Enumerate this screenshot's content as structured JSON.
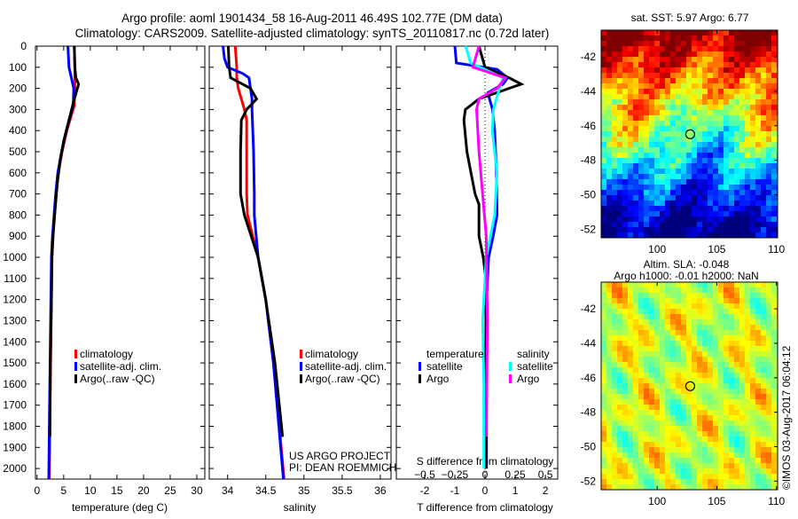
{
  "title_line1": "Argo profile: aoml 1901434_58 16-Aug-2011 46.49S 102.77E (DM data)",
  "title_line2": "Climatology: CARS2009. Satellite-adjusted climatology: synTS_20110817.nc (0.72d later)",
  "credit": "©IMOS 03-Aug-2017 06:04:12",
  "project_line1": "US ARGO PROJECT",
  "project_line2": "PI: DEAN ROEMMICH",
  "colors": {
    "climatology": "#ff0000",
    "satellite": "#0000ff",
    "argo": "#000000",
    "sal_satellite": "#00ffff",
    "sal_argo": "#ff00ff"
  },
  "chart_data": [
    {
      "type": "line",
      "name": "temperature-profile",
      "xlabel": "temperature (deg C)",
      "xlim": [
        -0.3,
        31.5
      ],
      "ylim": [
        0,
        2050
      ],
      "y_reversed": true,
      "xticks": [
        0,
        5,
        10,
        15,
        20,
        25,
        30
      ],
      "yticks": [
        0,
        100,
        200,
        300,
        400,
        500,
        600,
        700,
        800,
        900,
        1000,
        1100,
        1200,
        1300,
        1400,
        1500,
        1600,
        1700,
        1800,
        1900,
        2000
      ],
      "legend": [
        "climatology",
        "satellite-adj. clim.",
        "Argo(..raw -QC)"
      ],
      "series": [
        {
          "name": "climatology",
          "color": "#ff0000",
          "depth": [
            0,
            100,
            200,
            280,
            400,
            500,
            600,
            700,
            800,
            900,
            1000,
            1200,
            1400,
            1700,
            2050
          ],
          "values": [
            7.0,
            7.1,
            7.1,
            7.0,
            5.6,
            4.7,
            4.0,
            3.6,
            3.3,
            3.0,
            2.8,
            2.7,
            2.6,
            2.45,
            2.3
          ]
        },
        {
          "name": "satellite-adj. clim.",
          "color": "#0000ff",
          "depth": [
            0,
            100,
            200,
            280,
            400,
            500,
            600,
            700,
            800,
            900,
            1000,
            1200,
            1400,
            1700,
            2050
          ],
          "values": [
            5.8,
            6.0,
            6.9,
            6.8,
            5.5,
            4.6,
            3.9,
            3.5,
            3.2,
            2.9,
            2.7,
            2.6,
            2.5,
            2.35,
            2.2
          ]
        },
        {
          "name": "Argo(..raw -QC)",
          "color": "#000000",
          "depth": [
            0,
            100,
            150,
            180,
            250,
            350,
            450,
            550,
            650,
            800,
            900,
            1000,
            1200,
            1500,
            1850
          ],
          "values": [
            7.0,
            7.1,
            7.3,
            7.8,
            7.0,
            6.0,
            5.0,
            4.3,
            3.8,
            3.3,
            3.0,
            2.8,
            2.7,
            2.5,
            2.4
          ]
        }
      ]
    },
    {
      "type": "line",
      "name": "salinity-profile",
      "xlabel": "salinity",
      "xlim": [
        33.76,
        36.14
      ],
      "ylim": [
        0,
        2050
      ],
      "y_reversed": true,
      "xticks": [
        34,
        34.5,
        35,
        35.5,
        36
      ],
      "legend": [
        "climatology",
        "satellite-adj. clim.",
        "Argo(..raw -QC)"
      ],
      "series": [
        {
          "name": "climatology",
          "color": "#ff0000",
          "depth": [
            0,
            100,
            150,
            200,
            250,
            300,
            350,
            500,
            700,
            800,
            1000,
            1200,
            1500,
            2050
          ],
          "values": [
            34.1,
            34.12,
            34.12,
            34.14,
            34.18,
            34.22,
            34.25,
            34.25,
            34.25,
            34.26,
            34.4,
            34.5,
            34.6,
            34.74
          ]
        },
        {
          "name": "satellite-adj. clim.",
          "color": "#0000ff",
          "depth": [
            0,
            60,
            100,
            130,
            150,
            200,
            250,
            300,
            500,
            700,
            800,
            1000,
            1200,
            1500,
            2050
          ],
          "values": [
            33.94,
            33.96,
            34.0,
            34.2,
            34.28,
            34.3,
            34.32,
            34.32,
            34.34,
            34.35,
            34.35,
            34.4,
            34.5,
            34.6,
            34.73
          ]
        },
        {
          "name": "Argo(..raw -QC)",
          "color": "#000000",
          "depth": [
            0,
            100,
            150,
            200,
            250,
            300,
            350,
            500,
            700,
            800,
            1000,
            1200,
            1500,
            1850
          ],
          "values": [
            34.01,
            34.02,
            34.04,
            34.3,
            34.38,
            34.25,
            34.18,
            34.17,
            34.17,
            34.22,
            34.4,
            34.5,
            34.62,
            34.72
          ]
        }
      ]
    },
    {
      "type": "line",
      "name": "difference-profile",
      "xlabel": "T difference from climatology",
      "x2label": "S difference from climatology",
      "xlim": [
        -2.94,
        2.41
      ],
      "ylim": [
        0,
        2050
      ],
      "y_reversed": true,
      "xticks": [
        -2,
        -1,
        0,
        1,
        2
      ],
      "x2ticks": [
        -0.5,
        -0.25,
        0,
        0.25,
        0.5
      ],
      "x2_scale": 0.25,
      "legend_titles": [
        "temperature",
        "salinity"
      ],
      "series": [
        {
          "name": "T satellite",
          "group": "temperature",
          "label": "satellite",
          "units": "T",
          "color": "#0000ff",
          "depth": [
            0,
            80,
            110,
            150,
            180,
            220,
            250,
            300,
            400,
            600,
            800,
            900,
            1000,
            1200,
            2000
          ],
          "values": [
            -1.0,
            -0.95,
            0.4,
            0.75,
            0.6,
            0.1,
            0.15,
            0.25,
            0.32,
            0.38,
            0.4,
            0.27,
            0.12,
            0.05,
            0.05
          ]
        },
        {
          "name": "T Argo",
          "group": "temperature",
          "label": "Argo",
          "units": "T",
          "color": "#000000",
          "depth": [
            0,
            100,
            150,
            180,
            210,
            250,
            300,
            350,
            500,
            700,
            750,
            900,
            1000,
            1100,
            2000
          ],
          "values": [
            -0.2,
            0.0,
            0.8,
            1.2,
            0.6,
            -0.2,
            -0.65,
            -0.7,
            -0.6,
            -0.33,
            -0.2,
            -0.2,
            -0.06,
            0.03,
            0.03
          ]
        },
        {
          "name": "S satellite",
          "group": "salinity",
          "label": "satellite",
          "units": "S",
          "color": "#00ffff",
          "depth": [
            0,
            80,
            150,
            200,
            300,
            400,
            600,
            800,
            1000,
            1300,
            1600,
            2000
          ],
          "values": [
            -0.16,
            -0.12,
            0.15,
            0.12,
            0.07,
            0.06,
            0.1,
            0.08,
            0.01,
            -0.02,
            -0.01,
            -0.01
          ]
        },
        {
          "name": "S Argo",
          "group": "salinity",
          "label": "Argo",
          "units": "S",
          "color": "#ff00ff",
          "depth": [
            0,
            100,
            150,
            200,
            250,
            300,
            500,
            700,
            900,
            1300,
            1850
          ],
          "values": [
            -0.05,
            -0.1,
            0.17,
            0.1,
            -0.05,
            -0.07,
            -0.05,
            -0.02,
            0.01,
            0.02,
            0.01
          ]
        }
      ]
    },
    {
      "type": "heatmap",
      "name": "sst-map",
      "title": "sat. SST: 5.97 Argo: 6.77",
      "xlim": [
        95.3,
        110.1
      ],
      "ylim": [
        -52.5,
        -40.45
      ],
      "xticks": [
        100,
        105,
        110
      ],
      "yticks": [
        -42,
        -44,
        -46,
        -48,
        -50,
        -52
      ],
      "marker": {
        "lon": 102.77,
        "lat": -46.49
      }
    },
    {
      "type": "heatmap",
      "name": "sla-map",
      "title_line1": "Altim. SLA: -0.048",
      "title_line2": "Argo h1000: -0.01 h2000: NaN",
      "xlim": [
        95.3,
        110.1
      ],
      "ylim": [
        -52.5,
        -40.45
      ],
      "xticks": [
        100,
        105,
        110
      ],
      "yticks": [
        -42,
        -44,
        -46,
        -48,
        -50,
        -52
      ],
      "marker": {
        "lon": 102.77,
        "lat": -46.49
      }
    }
  ]
}
